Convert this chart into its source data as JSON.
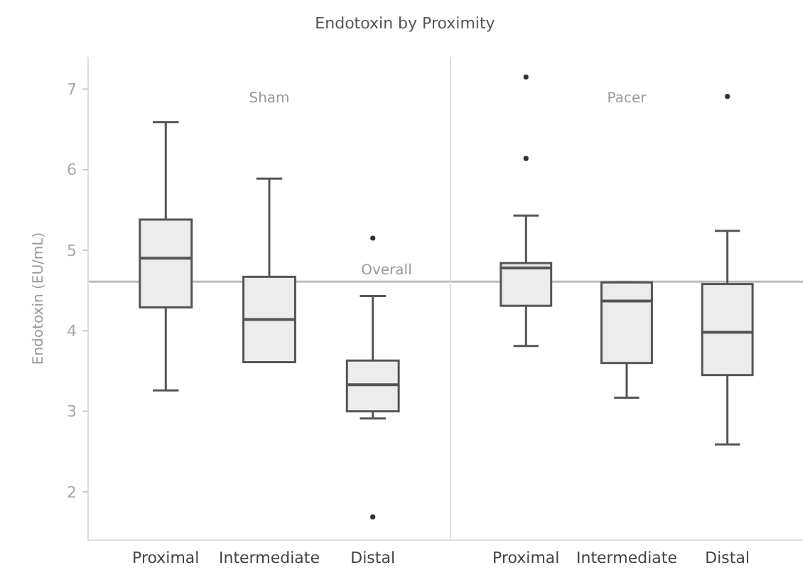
{
  "chart_data": [
    {
      "type": "box",
      "title": "Endotoxin by Proximity",
      "ylabel": "Endotoxin (EU/mL)",
      "annotations": [
        "Sham"
      ],
      "categories": [
        "Proximal",
        "Intermediate",
        "Distal"
      ],
      "color": "#ececec",
      "ylim": [
        1.4,
        7.4
      ],
      "yticks": [
        2,
        3,
        4,
        5,
        6,
        7
      ],
      "ref_lines": [
        {
          "axis": "y",
          "value": 4.61,
          "label": "Overall",
          "color": "#bbbbbb"
        }
      ],
      "boxes": [
        {
          "low": 3.26,
          "q1": 4.29,
          "median": 4.9,
          "q3": 5.38,
          "high": 6.59
        },
        {
          "low": 3.61,
          "q1": 3.61,
          "median": 4.14,
          "q3": 4.67,
          "high": 5.89
        },
        {
          "low": 2.91,
          "q1": 3.0,
          "median": 3.33,
          "q3": 3.63,
          "high": 4.43,
          "outliers": [
            5.15,
            1.69
          ]
        }
      ]
    },
    {
      "type": "box",
      "annotations": [
        "Pacer"
      ],
      "categories": [
        "Proximal",
        "Intermediate",
        "Distal"
      ],
      "color": "#ececec",
      "ylim": [
        1.4,
        7.4
      ],
      "tick_labels": "x",
      "ref_lines": [
        {
          "axis": "y",
          "value": 4.61,
          "color": "#bbbbbb"
        }
      ],
      "boxes": [
        {
          "low": 3.81,
          "q1": 4.31,
          "median": 4.78,
          "q3": 4.84,
          "high": 5.43,
          "outliers": [
            7.15,
            6.14
          ]
        },
        {
          "low": 3.17,
          "q1": 3.6,
          "median": 4.37,
          "q3": 4.6,
          "high": 4.6
        },
        {
          "low": 2.59,
          "q1": 3.45,
          "median": 3.98,
          "q3": 4.58,
          "high": 5.24,
          "outliers": [
            6.91
          ]
        }
      ]
    }
  ]
}
